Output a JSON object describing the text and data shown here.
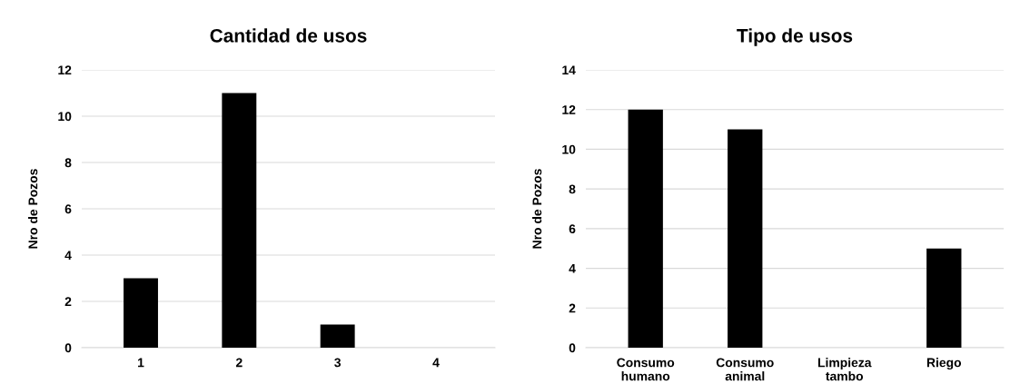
{
  "chart_data": [
    {
      "type": "bar",
      "title": "Cantidad de usos",
      "ylabel": "Nro de Pozos",
      "categories": [
        "1",
        "2",
        "3",
        "4"
      ],
      "values": [
        3,
        11,
        1,
        0
      ],
      "color": "#000000",
      "ylim": [
        0,
        12
      ],
      "yticks": [
        0,
        2,
        4,
        6,
        8,
        10,
        12
      ],
      "grid": "y",
      "legend": false
    },
    {
      "type": "bar",
      "title": "Tipo de usos",
      "ylabel": "Nro de Pozos",
      "categories": [
        "Consumo\nhumano",
        "Consumo\nanimal",
        "Limpieza\ntambo",
        "Riego"
      ],
      "values": [
        12,
        11,
        0,
        5
      ],
      "color": "#000000",
      "ylim": [
        0,
        14
      ],
      "yticks": [
        0,
        2,
        4,
        6,
        8,
        10,
        12,
        14
      ],
      "grid": "y",
      "legend": false
    }
  ]
}
